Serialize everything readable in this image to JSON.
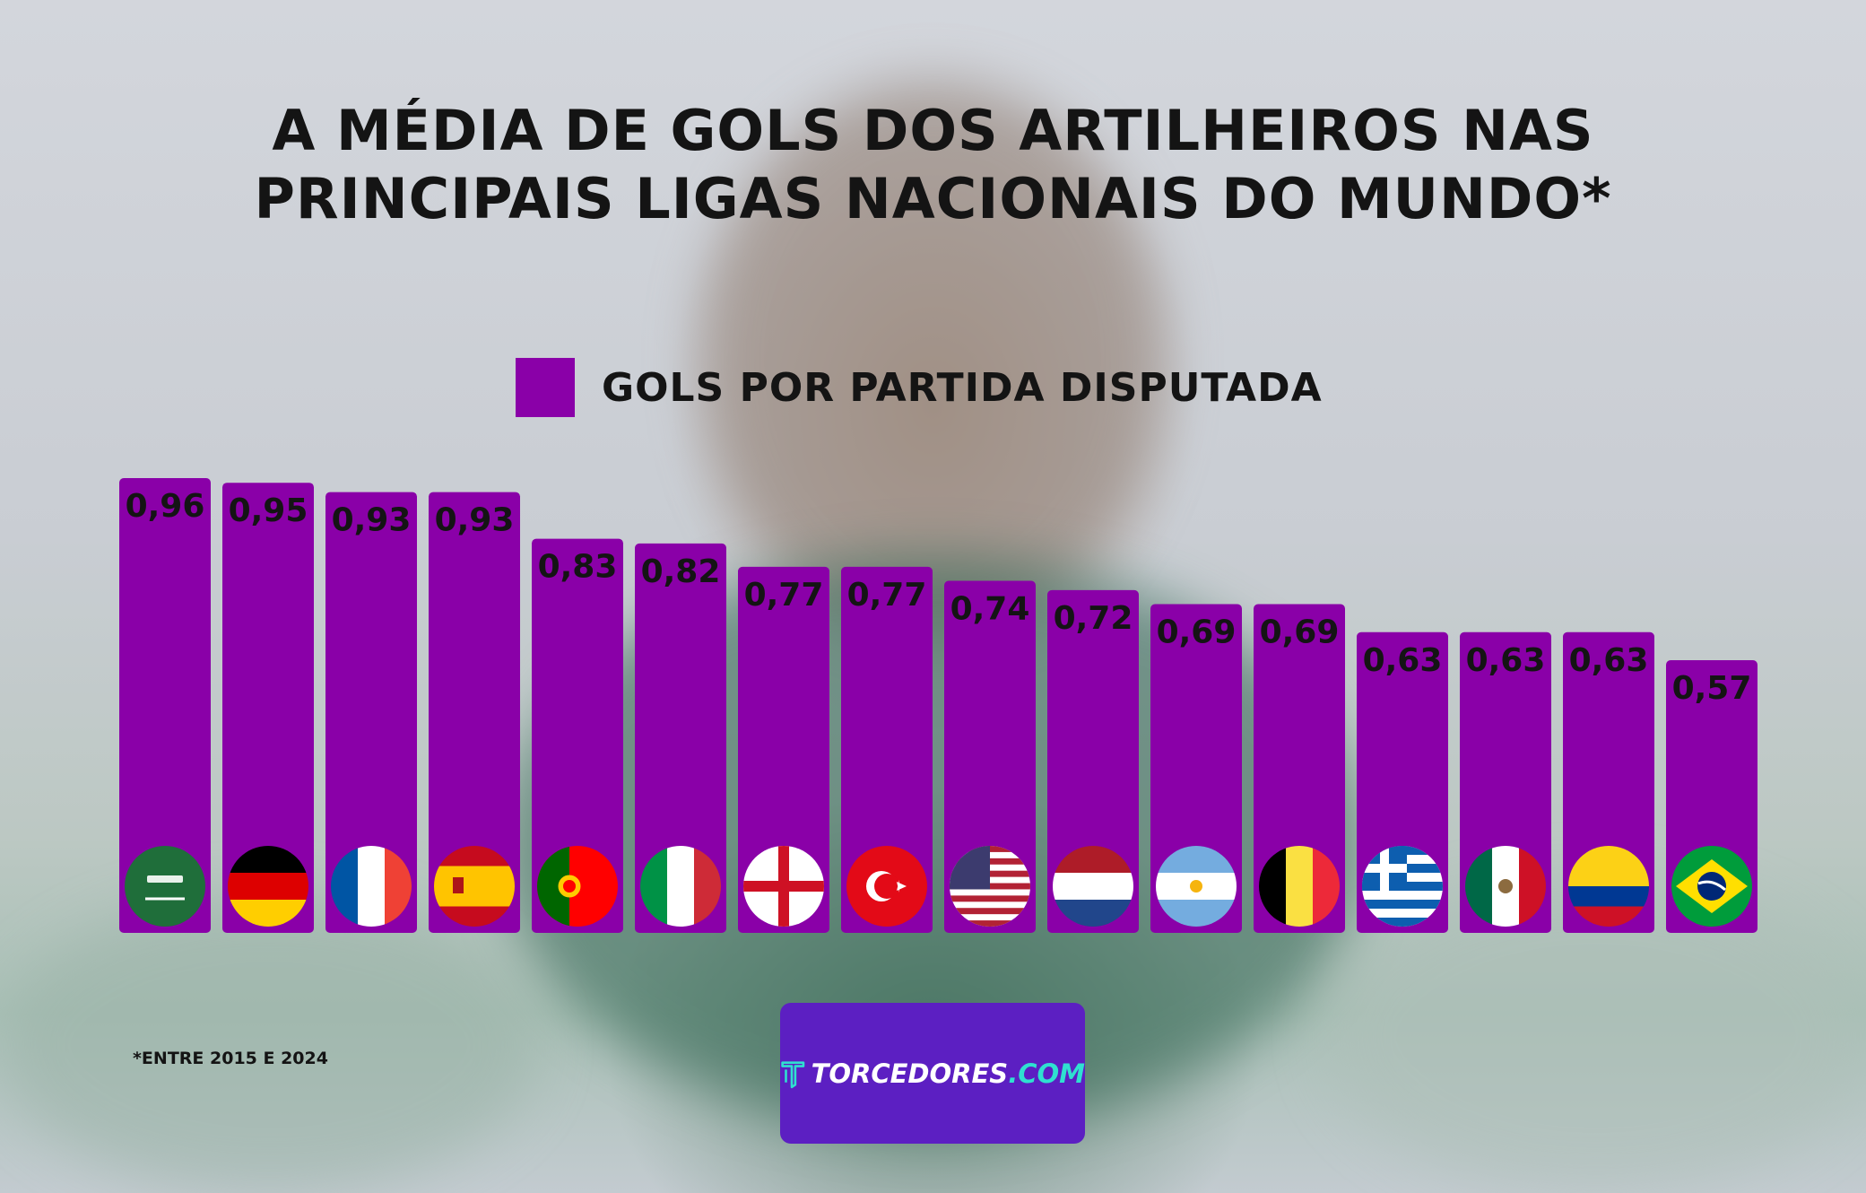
{
  "title_lines": [
    "A MÉDIA DE GOLS DOS ARTILHEIROS NAS",
    "PRINCIPAIS LIGAS NACIONAIS DO MUNDO*"
  ],
  "legend_label": "GOLS POR PARTIDA DISPUTADA",
  "footnote": "*ENTRE 2015 E 2024",
  "brand": {
    "name": "TORCEDORES",
    "suffix": ".COM",
    "bg_color": "#5c1fc2",
    "accent": "#2fe0d0"
  },
  "colors": {
    "bar": "#8a00a8",
    "text": "#141414"
  },
  "chart_data": {
    "type": "bar",
    "title": "A MÉDIA DE GOLS DOS ARTILHEIROS NAS PRINCIPAIS LIGAS NACIONAIS DO MUNDO*",
    "series": [
      {
        "name": "GOLS POR PARTIDA DISPUTADA",
        "values": [
          0.96,
          0.95,
          0.93,
          0.93,
          0.83,
          0.82,
          0.77,
          0.77,
          0.74,
          0.72,
          0.69,
          0.69,
          0.63,
          0.63,
          0.63,
          0.57
        ]
      }
    ],
    "value_labels": [
      "0,96",
      "0,95",
      "0,93",
      "0,93",
      "0,83",
      "0,82",
      "0,77",
      "0,77",
      "0,74",
      "0,72",
      "0,69",
      "0,69",
      "0,63",
      "0,63",
      "0,63",
      "0,57"
    ],
    "category_icons": [
      "saudi-arabia-flag-icon",
      "germany-flag-icon",
      "france-flag-icon",
      "spain-flag-icon",
      "portugal-flag-icon",
      "italy-flag-icon",
      "england-flag-icon",
      "turkey-flag-icon",
      "usa-flag-icon",
      "netherlands-flag-icon",
      "argentina-flag-icon",
      "belgium-flag-icon",
      "greece-flag-icon",
      "mexico-flag-icon",
      "colombia-flag-icon",
      "brazil-flag-icon"
    ],
    "legend_position": "top-center",
    "grid": false,
    "bar_color": "#8a00a8"
  }
}
